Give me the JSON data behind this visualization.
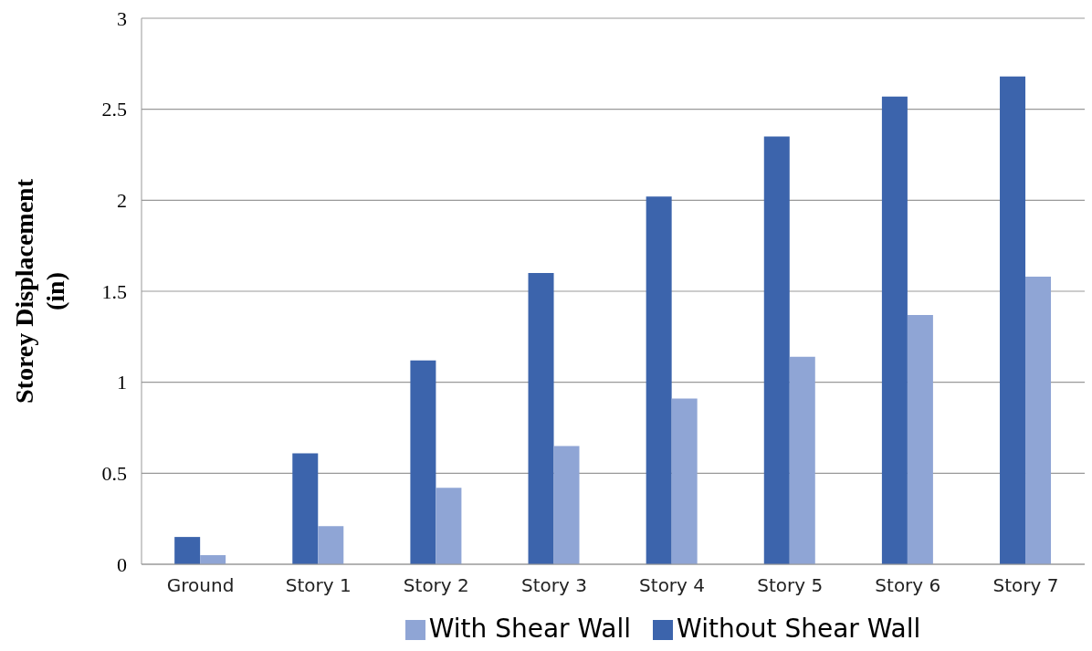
{
  "chart_data": {
    "type": "bar",
    "ylabel": "Storey Displacement (in)",
    "categories": [
      "Ground",
      "Story 1",
      "Story 2",
      "Story 3",
      "Story 4",
      "Story 5",
      "Story 6",
      "Story 7"
    ],
    "series": [
      {
        "name": "Without Shear Wall",
        "color": "#3c64ac",
        "values": [
          0.15,
          0.61,
          1.12,
          1.6,
          2.02,
          2.35,
          2.57,
          2.68
        ]
      },
      {
        "name": "With Shear Wall",
        "color": "#8fa5d5",
        "values": [
          0.05,
          0.21,
          0.42,
          0.65,
          0.91,
          1.14,
          1.37,
          1.58
        ]
      }
    ],
    "ylim": [
      0,
      3
    ],
    "yticks": [
      0,
      0.5,
      1,
      1.5,
      2,
      2.5,
      3
    ],
    "grid": "y",
    "legend": "bottom"
  }
}
